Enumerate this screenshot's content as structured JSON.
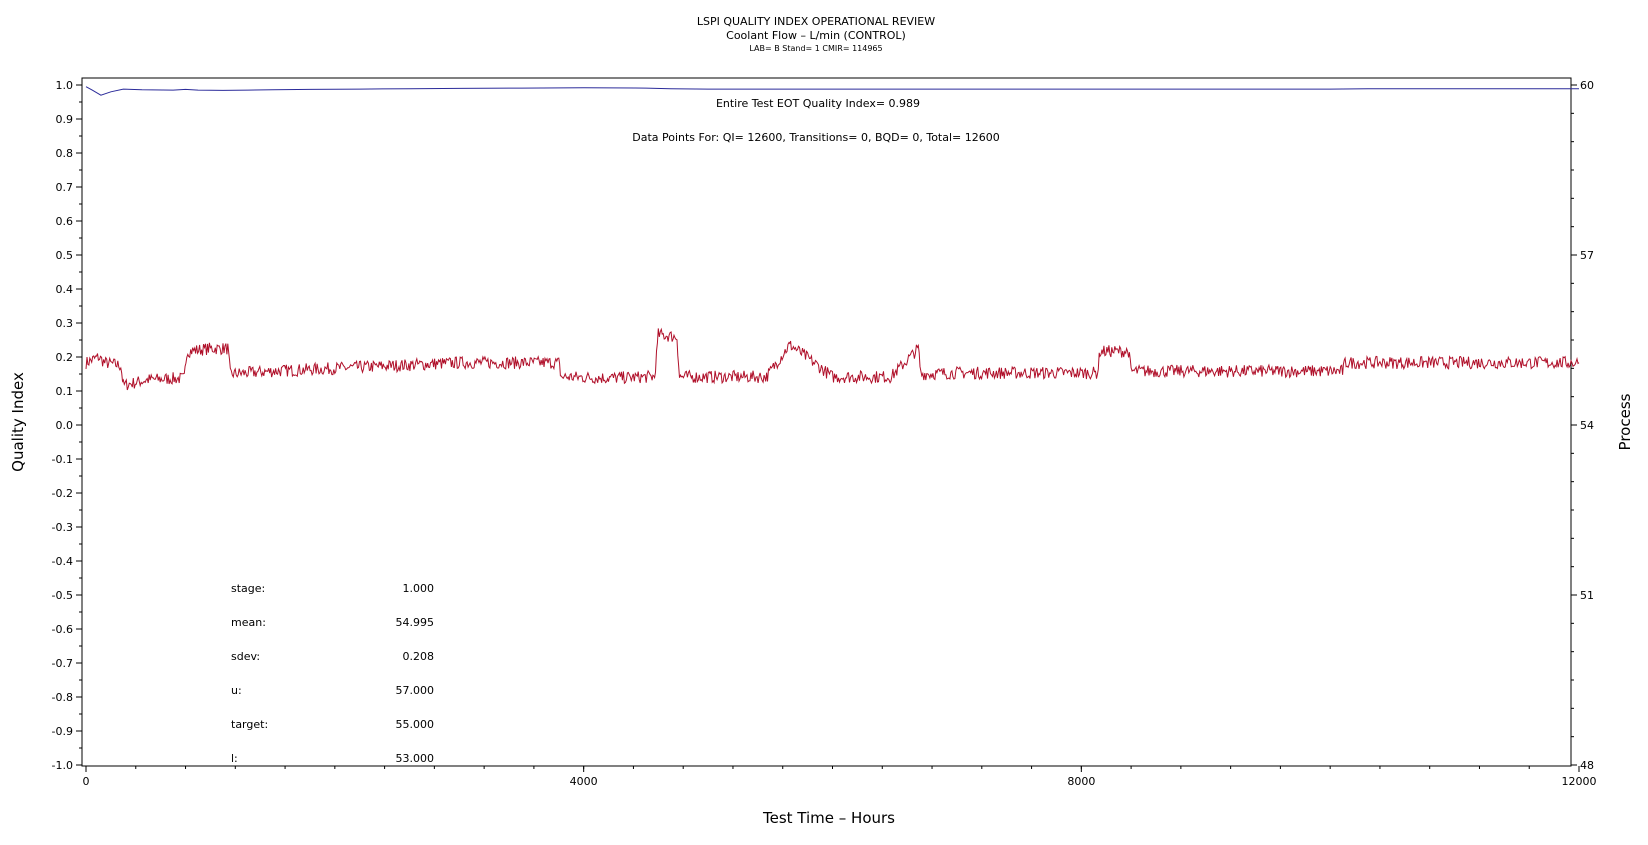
{
  "chart_data": {
    "type": "line",
    "title": "LSPI QUALITY INDEX OPERATIONAL REVIEW",
    "subtitle": "Coolant Flow – L/min (CONTROL)",
    "subtitle2": "LAB= B Stand= 1 CMIR= 114965",
    "xlabel": "Test Time – Hours",
    "ylabel_left": "Quality Index",
    "ylabel_right": "Process",
    "xlim": [
      0,
      12000
    ],
    "ylim_left": [
      -1.0,
      1.0
    ],
    "ylim_right": [
      48,
      60
    ],
    "x_ticks": [
      "0",
      "4000",
      "8000",
      "12000"
    ],
    "y_left_ticks": [
      "1.0",
      "0.9",
      "0.8",
      "0.7",
      "0.6",
      "0.5",
      "0.4",
      "0.3",
      "0.2",
      "0.1",
      "0.0",
      "-0.1",
      "-0.2",
      "-0.3",
      "-0.4",
      "-0.5",
      "-0.6",
      "-0.7",
      "-0.8",
      "-0.9",
      "-1.0"
    ],
    "y_right_ticks": [
      "60",
      "57",
      "54",
      "51",
      "48"
    ],
    "annotations": [
      "Entire Test EOT Quality Index=   0.989",
      "Data Points For: QI= 12600, Transitions=     0, BQD=     0, Total= 12600"
    ],
    "stats": [
      {
        "label": "stage:",
        "value": "1.000"
      },
      {
        "label": "mean:",
        "value": "54.995"
      },
      {
        "label": "sdev:",
        "value": "0.208"
      },
      {
        "label": "u:",
        "value": "57.000"
      },
      {
        "label": "target:",
        "value": "55.000"
      },
      {
        "label": "l:",
        "value": "53.000"
      }
    ],
    "series": [
      {
        "axis": "left",
        "color": "#2b2b9a",
        "x": [
          0,
          50,
          120,
          200,
          300,
          450,
          700,
          800,
          900,
          1100,
          1300,
          1500,
          1800,
          2200,
          2600,
          3000,
          3500,
          4000,
          4500,
          4700,
          5000,
          5500,
          6000,
          7000,
          8000,
          9000,
          10000,
          10300,
          11000,
          12000
        ],
        "values": [
          0.995,
          0.985,
          0.97,
          0.98,
          0.988,
          0.986,
          0.985,
          0.987,
          0.985,
          0.984,
          0.985,
          0.986,
          0.987,
          0.988,
          0.989,
          0.99,
          0.991,
          0.992,
          0.991,
          0.989,
          0.988,
          0.988,
          0.988,
          0.988,
          0.988,
          0.988,
          0.988,
          0.989,
          0.989,
          0.989
        ]
      },
      {
        "axis": "right",
        "color": "#b0102a",
        "x": [
          0,
          100,
          150,
          280,
          300,
          500,
          700,
          790,
          810,
          1000,
          1140,
          1160,
          1500,
          2000,
          2500,
          3000,
          3500,
          3800,
          3820,
          4200,
          4550,
          4570,
          4600,
          4750,
          4770,
          5200,
          5450,
          5470,
          5650,
          5670,
          6000,
          6450,
          6470,
          6690,
          6710,
          7000,
          7500,
          8000,
          8130,
          8150,
          8380,
          8400,
          9000,
          9500,
          10000,
          10100,
          10120,
          11000,
          12000
        ],
        "values": [
          55.1,
          55.2,
          55.1,
          55.05,
          54.7,
          54.8,
          54.82,
          54.82,
          55.3,
          55.35,
          55.35,
          54.9,
          54.95,
          55.0,
          55.05,
          55.1,
          55.1,
          55.1,
          54.85,
          54.83,
          54.85,
          54.85,
          55.6,
          55.55,
          54.85,
          54.85,
          54.85,
          54.85,
          55.4,
          55.4,
          54.85,
          54.85,
          54.85,
          55.35,
          54.9,
          54.92,
          54.92,
          54.92,
          54.92,
          55.3,
          55.3,
          54.95,
          54.95,
          54.95,
          54.95,
          54.95,
          55.1,
          55.1,
          55.1
        ]
      }
    ]
  }
}
